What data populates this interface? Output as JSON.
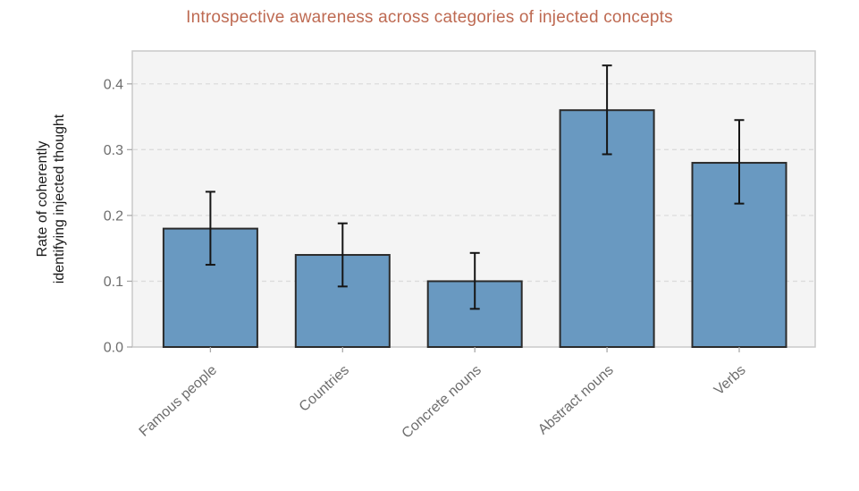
{
  "chart_data": {
    "type": "bar",
    "title": "Introspective awareness across categories of injected concepts",
    "categories": [
      "Famous people",
      "Countries",
      "Concrete nouns",
      "Abstract nouns",
      "Verbs"
    ],
    "values": [
      0.18,
      0.14,
      0.1,
      0.36,
      0.28
    ],
    "error_low": [
      0.125,
      0.092,
      0.058,
      0.293,
      0.218
    ],
    "error_high": [
      0.236,
      0.188,
      0.143,
      0.428,
      0.345
    ],
    "xlabel": "",
    "ylabel_lines": [
      "Rate of coherently",
      "identifying injected thought"
    ],
    "ylim": [
      0,
      0.45
    ],
    "yticks": [
      0.0,
      0.1,
      0.2,
      0.3,
      0.4
    ],
    "ytick_labels": [
      "0.0",
      "0.1",
      "0.2",
      "0.3",
      "0.4"
    ],
    "xtick_rotation_deg": 42,
    "grid": "horizontal-dashed",
    "legend": "none",
    "colors": {
      "title": "#BE6A52",
      "bar_fill": "#6999C1",
      "bar_edge": "#2B2B2B",
      "error_bar": "#151515",
      "plot_background": "#F4F4F4",
      "figure_background": "#FFFFFF",
      "gridline": "#DCDCDC",
      "spine": "#C9C9C9",
      "tick_mark": "#AAAAAA",
      "tick_label": "#6E6E6E",
      "axis_label": "#1A1A1A"
    }
  }
}
